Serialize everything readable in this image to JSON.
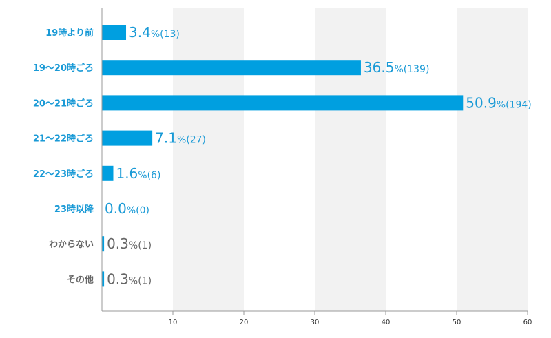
{
  "chart_data": {
    "type": "bar",
    "orientation": "horizontal",
    "title": "",
    "xlabel": "",
    "ylabel": "",
    "xlim": [
      0,
      60
    ],
    "x_ticks": [
      10,
      20,
      30,
      40,
      50,
      60
    ],
    "grid": "alternating vertical bands",
    "categories": [
      "19時より前",
      "19〜20時ごろ",
      "20〜21時ごろ",
      "21〜22時ごろ",
      "22〜23時ごろ",
      "23時以降",
      "わからない",
      "その他"
    ],
    "values": [
      3.4,
      36.5,
      50.9,
      7.1,
      1.6,
      0.0,
      0.3,
      0.3
    ],
    "value_labels": [
      "3.4",
      "36.5",
      "50.9",
      "7.1",
      "1.6",
      "0.0",
      "0.3",
      "0.3"
    ],
    "percent_sign": "%",
    "counts_labels": [
      "(13)",
      "(139)",
      "(194)",
      "(27)",
      "(6)",
      "(0)",
      "(1)",
      "(1)"
    ],
    "label_colors": [
      "#1a9ad6",
      "#1a9ad6",
      "#1a9ad6",
      "#1a9ad6",
      "#1a9ad6",
      "#1a9ad6",
      "#666666",
      "#666666"
    ],
    "bar_color": "#009fe0",
    "band_color": "#f2f2f2",
    "axis_color": "#999999"
  }
}
